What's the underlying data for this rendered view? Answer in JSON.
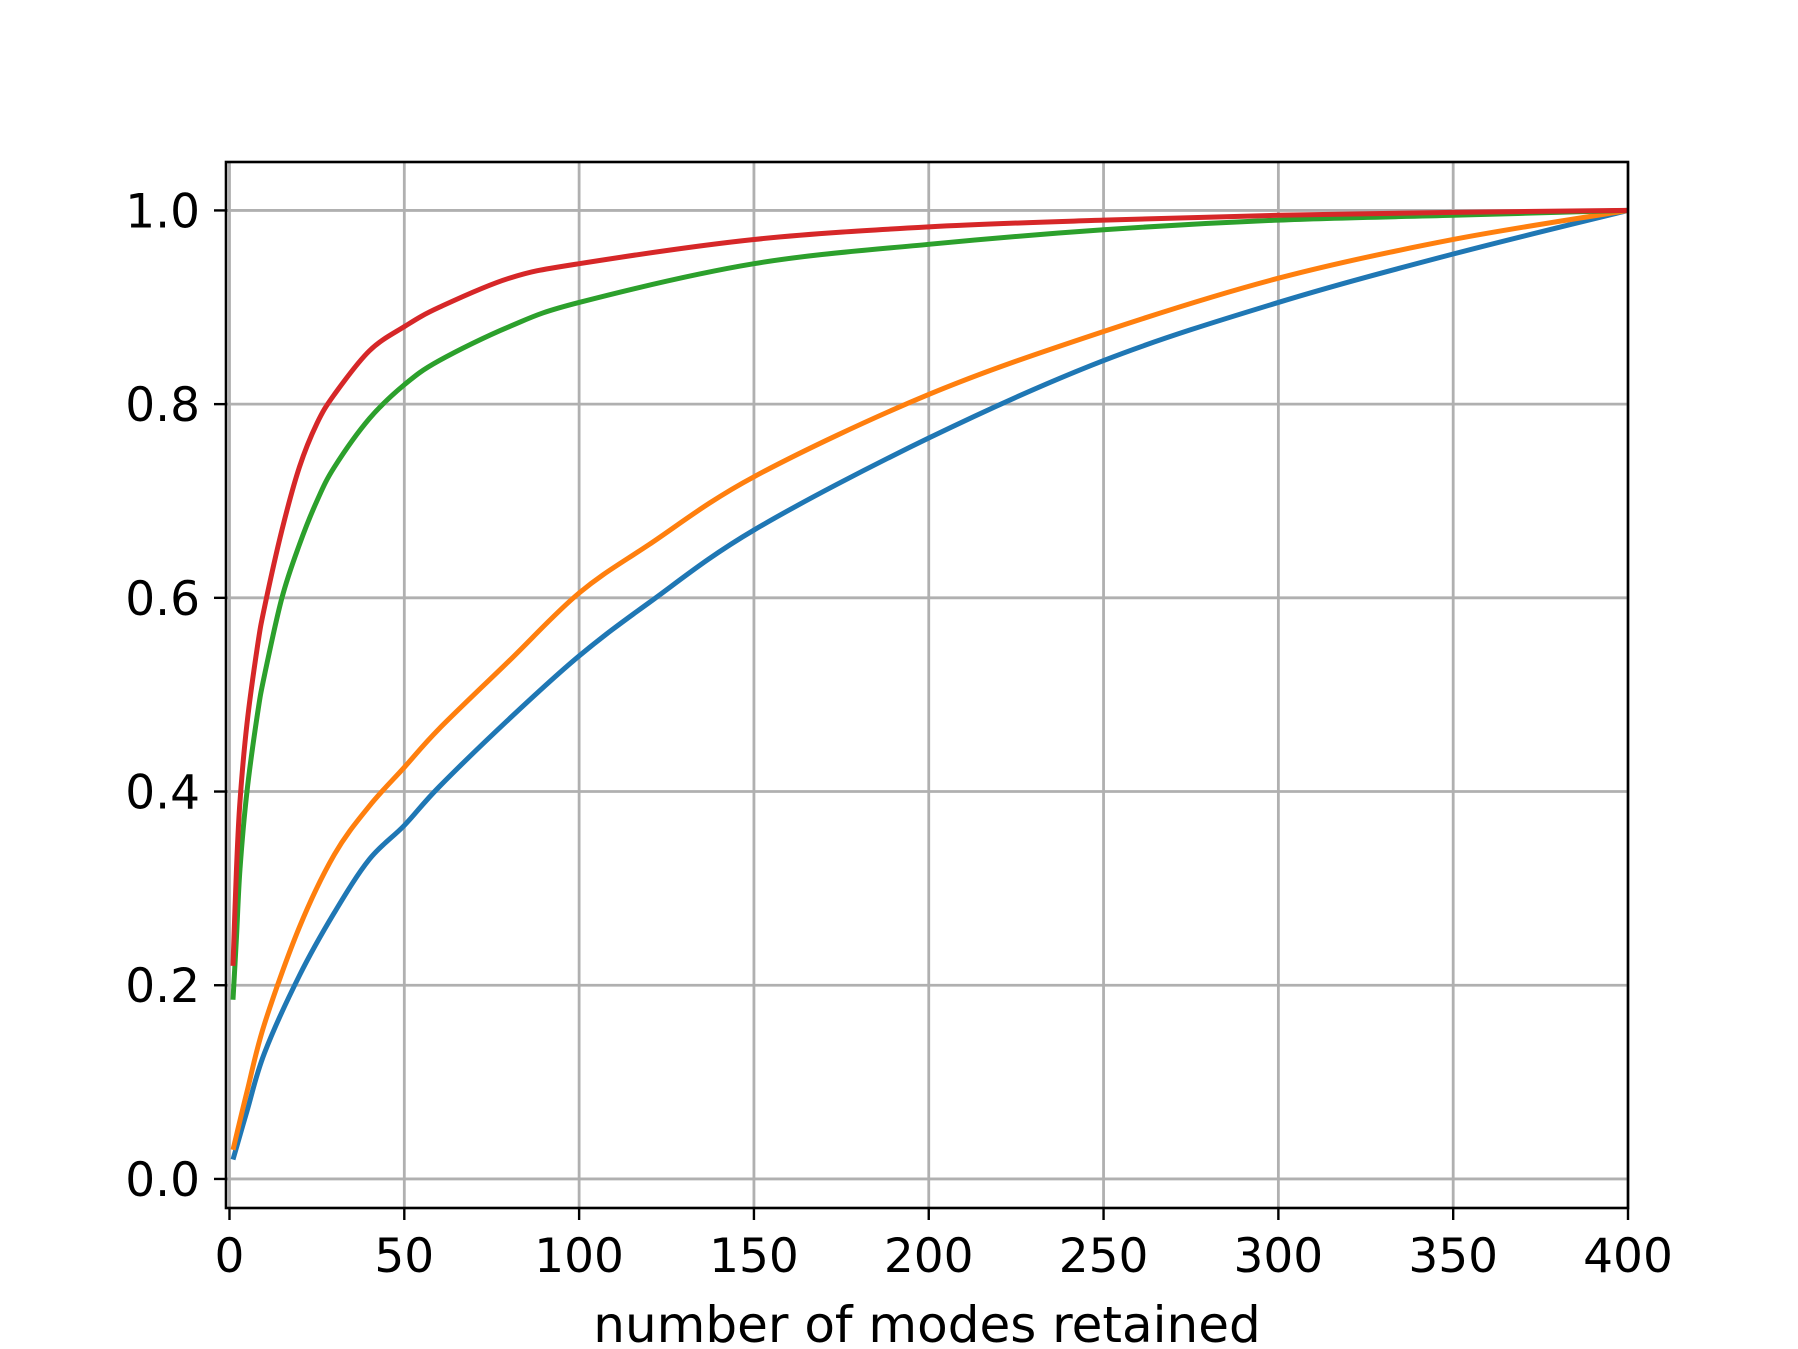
{
  "chart_data": {
    "type": "line",
    "title": "",
    "xlabel": "number of modes retained",
    "ylabel": "",
    "xlim": [
      -1,
      400
    ],
    "ylim": [
      -0.03,
      1.05
    ],
    "xticks": [
      0,
      50,
      100,
      150,
      200,
      250,
      300,
      350,
      400
    ],
    "yticks": [
      0.0,
      0.2,
      0.4,
      0.6,
      0.8,
      1.0
    ],
    "xtick_labels": [
      "0",
      "50",
      "100",
      "150",
      "200",
      "250",
      "300",
      "350",
      "400"
    ],
    "ytick_labels": [
      "0.0",
      "0.2",
      "0.4",
      "0.6",
      "0.8",
      "1.0"
    ],
    "grid": true,
    "legend": "none",
    "series": [
      {
        "color": "#1f77b4",
        "x": [
          1,
          5,
          10,
          20,
          30,
          40,
          50,
          60,
          80,
          100,
          120,
          150,
          200,
          250,
          300,
          350,
          400
        ],
        "y": [
          0.02,
          0.07,
          0.13,
          0.21,
          0.275,
          0.33,
          0.365,
          0.405,
          0.475,
          0.54,
          0.595,
          0.67,
          0.765,
          0.845,
          0.905,
          0.955,
          1.0
        ]
      },
      {
        "color": "#ff7f0e",
        "x": [
          1,
          5,
          10,
          20,
          30,
          40,
          50,
          60,
          80,
          100,
          120,
          150,
          200,
          250,
          300,
          350,
          400
        ],
        "y": [
          0.03,
          0.09,
          0.16,
          0.26,
          0.335,
          0.385,
          0.425,
          0.465,
          0.535,
          0.605,
          0.655,
          0.725,
          0.81,
          0.875,
          0.93,
          0.97,
          1.0
        ]
      },
      {
        "color": "#2ca02c",
        "x": [
          1,
          2,
          3,
          5,
          8,
          10,
          15,
          20,
          25,
          30,
          40,
          50,
          60,
          80,
          100,
          150,
          200,
          250,
          300,
          350,
          400
        ],
        "y": [
          0.185,
          0.25,
          0.32,
          0.4,
          0.48,
          0.52,
          0.6,
          0.655,
          0.7,
          0.735,
          0.785,
          0.82,
          0.845,
          0.88,
          0.905,
          0.945,
          0.965,
          0.98,
          0.99,
          0.995,
          1.0
        ]
      },
      {
        "color": "#d62728",
        "x": [
          1,
          2,
          3,
          5,
          8,
          10,
          15,
          20,
          25,
          30,
          40,
          50,
          60,
          80,
          100,
          150,
          200,
          250,
          300,
          350,
          400
        ],
        "y": [
          0.22,
          0.32,
          0.39,
          0.47,
          0.55,
          0.59,
          0.67,
          0.735,
          0.78,
          0.81,
          0.855,
          0.88,
          0.9,
          0.93,
          0.945,
          0.97,
          0.983,
          0.99,
          0.995,
          0.998,
          1.0
        ]
      }
    ]
  }
}
